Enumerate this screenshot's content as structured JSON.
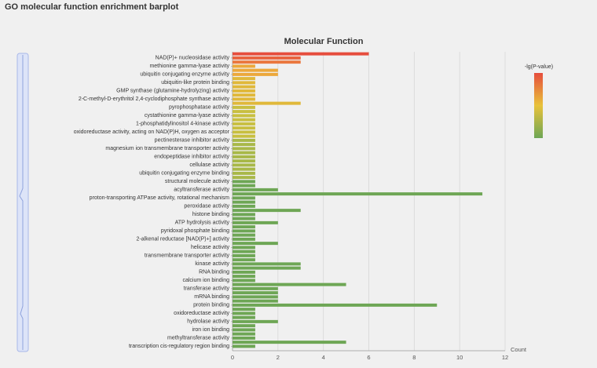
{
  "page_title": "GO molecular function enrichment barplot",
  "chart_data": {
    "type": "bar",
    "orientation": "horizontal",
    "title": "Molecular Function",
    "x_label": "Count",
    "legend_title": "-lg(P-value)",
    "legend_colors": [
      "#e64d3d",
      "#e8c23a",
      "#6ea655"
    ],
    "xlim": [
      0,
      12
    ],
    "xticks": [
      0,
      2,
      4,
      6,
      8,
      10,
      12
    ],
    "grid": true,
    "categories": [
      null,
      "NAD(P)+ nucleosidase activity",
      null,
      "methionine gamma-lyase activity",
      null,
      "ubiquitin conjugating enzyme activity",
      null,
      "ubiquitin-like protein binding",
      null,
      "GMP synthase (glutamine-hydrolyzing) activity",
      null,
      "2-C-methyl-D-erythritol 2,4-cyclodiphosphate synthase activity",
      null,
      "pyrophosphatase activity",
      null,
      "cystathionine gamma-lyase activity",
      null,
      "1-phosphatidylinositol 4-kinase activity",
      null,
      "oxidoreductase activity, acting on NAD(P)H, oxygen as acceptor",
      null,
      "pectinesterase inhibitor activity",
      null,
      "magnesium ion transmembrane transporter activity",
      null,
      "endopeptidase inhibitor activity",
      null,
      "cellulase activity",
      null,
      "ubiquitin conjugating enzyme binding",
      null,
      "structural molecule activity",
      null,
      "acyltransferase activity",
      null,
      "proton-transporting ATPase activity, rotational mechanism",
      null,
      "peroxidase activity",
      null,
      "histone binding",
      null,
      "ATP hydrolysis activity",
      null,
      "pyridoxal phosphate binding",
      null,
      "2-alkenal reductase [NAD(P)+] activity",
      null,
      "helicase activity",
      null,
      "transmembrane transporter activity",
      null,
      "kinase activity",
      null,
      "RNA binding",
      null,
      "calcium ion binding",
      null,
      "transferase activity",
      null,
      "mRNA binding",
      null,
      "protein binding",
      null,
      "oxidoreductase activity",
      null,
      "hydrolase activity",
      null,
      "iron ion binding",
      null,
      "methyltransferase activity",
      null,
      "transcription cis-regulatory region binding"
    ],
    "values": [
      6,
      3,
      3,
      1,
      2,
      2,
      1,
      1,
      1,
      1,
      1,
      1,
      3,
      1,
      1,
      1,
      1,
      1,
      1,
      1,
      1,
      1,
      1,
      1,
      1,
      1,
      1,
      1,
      1,
      1,
      1,
      1,
      1,
      2,
      11,
      1,
      1,
      1,
      3,
      1,
      1,
      2,
      1,
      1,
      1,
      1,
      2,
      1,
      1,
      1,
      1,
      3,
      3,
      1,
      1,
      1,
      5,
      2,
      2,
      2,
      2,
      9,
      1,
      1,
      1,
      2,
      1,
      1,
      1,
      1,
      5,
      1
    ],
    "colors": [
      "#e64d3d",
      "#e8623e",
      "#ea783f",
      "#eca83b",
      "#eca83b",
      "#eca83b",
      "#e0b83a",
      "#e0b83a",
      "#e0b83a",
      "#e0b83a",
      "#e0b83a",
      "#e0b83a",
      "#e0b83a",
      "#c8bf40",
      "#c8bf40",
      "#c8bf40",
      "#c8bf40",
      "#c8bf40",
      "#c8bf40",
      "#c8bf40",
      "#c8bf40",
      "#a8b848",
      "#a8b848",
      "#a8b848",
      "#a8b848",
      "#a8b848",
      "#a8b848",
      "#a8b848",
      "#a8b848",
      "#a8b848",
      "#a8b848",
      "#6ea655",
      "#6ea655",
      "#6ea655",
      "#6ea655",
      "#6ea655",
      "#6ea655",
      "#6ea655",
      "#6ea655",
      "#6ea655",
      "#6ea655",
      "#6ea655",
      "#6ea655",
      "#6ea655",
      "#6ea655",
      "#6ea655",
      "#6ea655",
      "#6ea655",
      "#6ea655",
      "#6ea655",
      "#6ea655",
      "#6ea655",
      "#6ea655",
      "#6ea655",
      "#6ea655",
      "#6ea655",
      "#6ea655",
      "#6ea655",
      "#6ea655",
      "#6ea655",
      "#6ea655",
      "#6ea655",
      "#6ea655",
      "#6ea655",
      "#6ea655",
      "#6ea655",
      "#6ea655",
      "#6ea655",
      "#6ea655",
      "#6ea655",
      "#6ea655",
      "#6ea655"
    ]
  }
}
